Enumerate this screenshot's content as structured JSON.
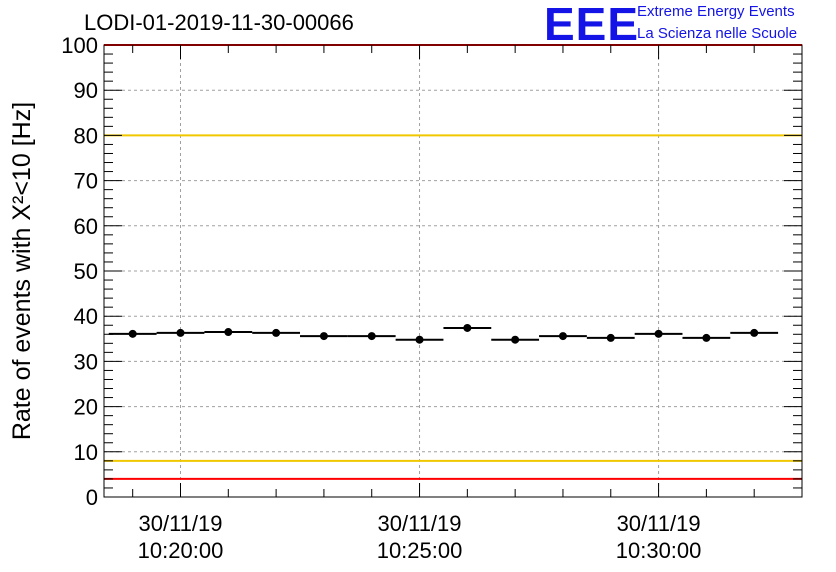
{
  "header": {
    "run_title": "LODI-01-2019-11-30-00066",
    "logo_text": "EEE",
    "tagline_1": "Extreme Energy Events",
    "tagline_2": "La Scienza nelle Scuole"
  },
  "chart_data": {
    "type": "scatter",
    "title": "LODI-01-2019-11-30-00066",
    "ylabel": "Rate of events with X²<10 [Hz]",
    "ylim": [
      0,
      100
    ],
    "yticks": [
      0,
      10,
      20,
      30,
      40,
      50,
      60,
      70,
      80,
      90,
      100
    ],
    "xlim": [
      "30/11/19 10:18:24",
      "30/11/19 10:33:00"
    ],
    "xticks": [
      {
        "date": "30/11/19",
        "time": "10:20:00"
      },
      {
        "date": "30/11/19",
        "time": "10:25:00"
      },
      {
        "date": "30/11/19",
        "time": "10:30:00"
      }
    ],
    "grid": true,
    "bin_width_s": 60,
    "series": [
      {
        "x": [
          "10:19:00",
          "10:20:00",
          "10:21:00",
          "10:22:00",
          "10:23:00",
          "10:24:00",
          "10:25:00",
          "10:26:00",
          "10:27:00",
          "10:28:00",
          "10:29:00",
          "10:30:00",
          "10:31:00",
          "10:32:00"
        ],
        "values": [
          36.1,
          36.3,
          36.5,
          36.3,
          35.6,
          35.6,
          34.8,
          37.4,
          34.8,
          35.6,
          35.2,
          36.1,
          35.2,
          36.3
        ]
      }
    ],
    "reference_lines": [
      {
        "y": 100,
        "color": "#ff0000"
      },
      {
        "y": 80,
        "color": "#f0c800"
      },
      {
        "y": 8,
        "color": "#f0c800"
      },
      {
        "y": 4,
        "color": "#ff0000"
      }
    ]
  }
}
